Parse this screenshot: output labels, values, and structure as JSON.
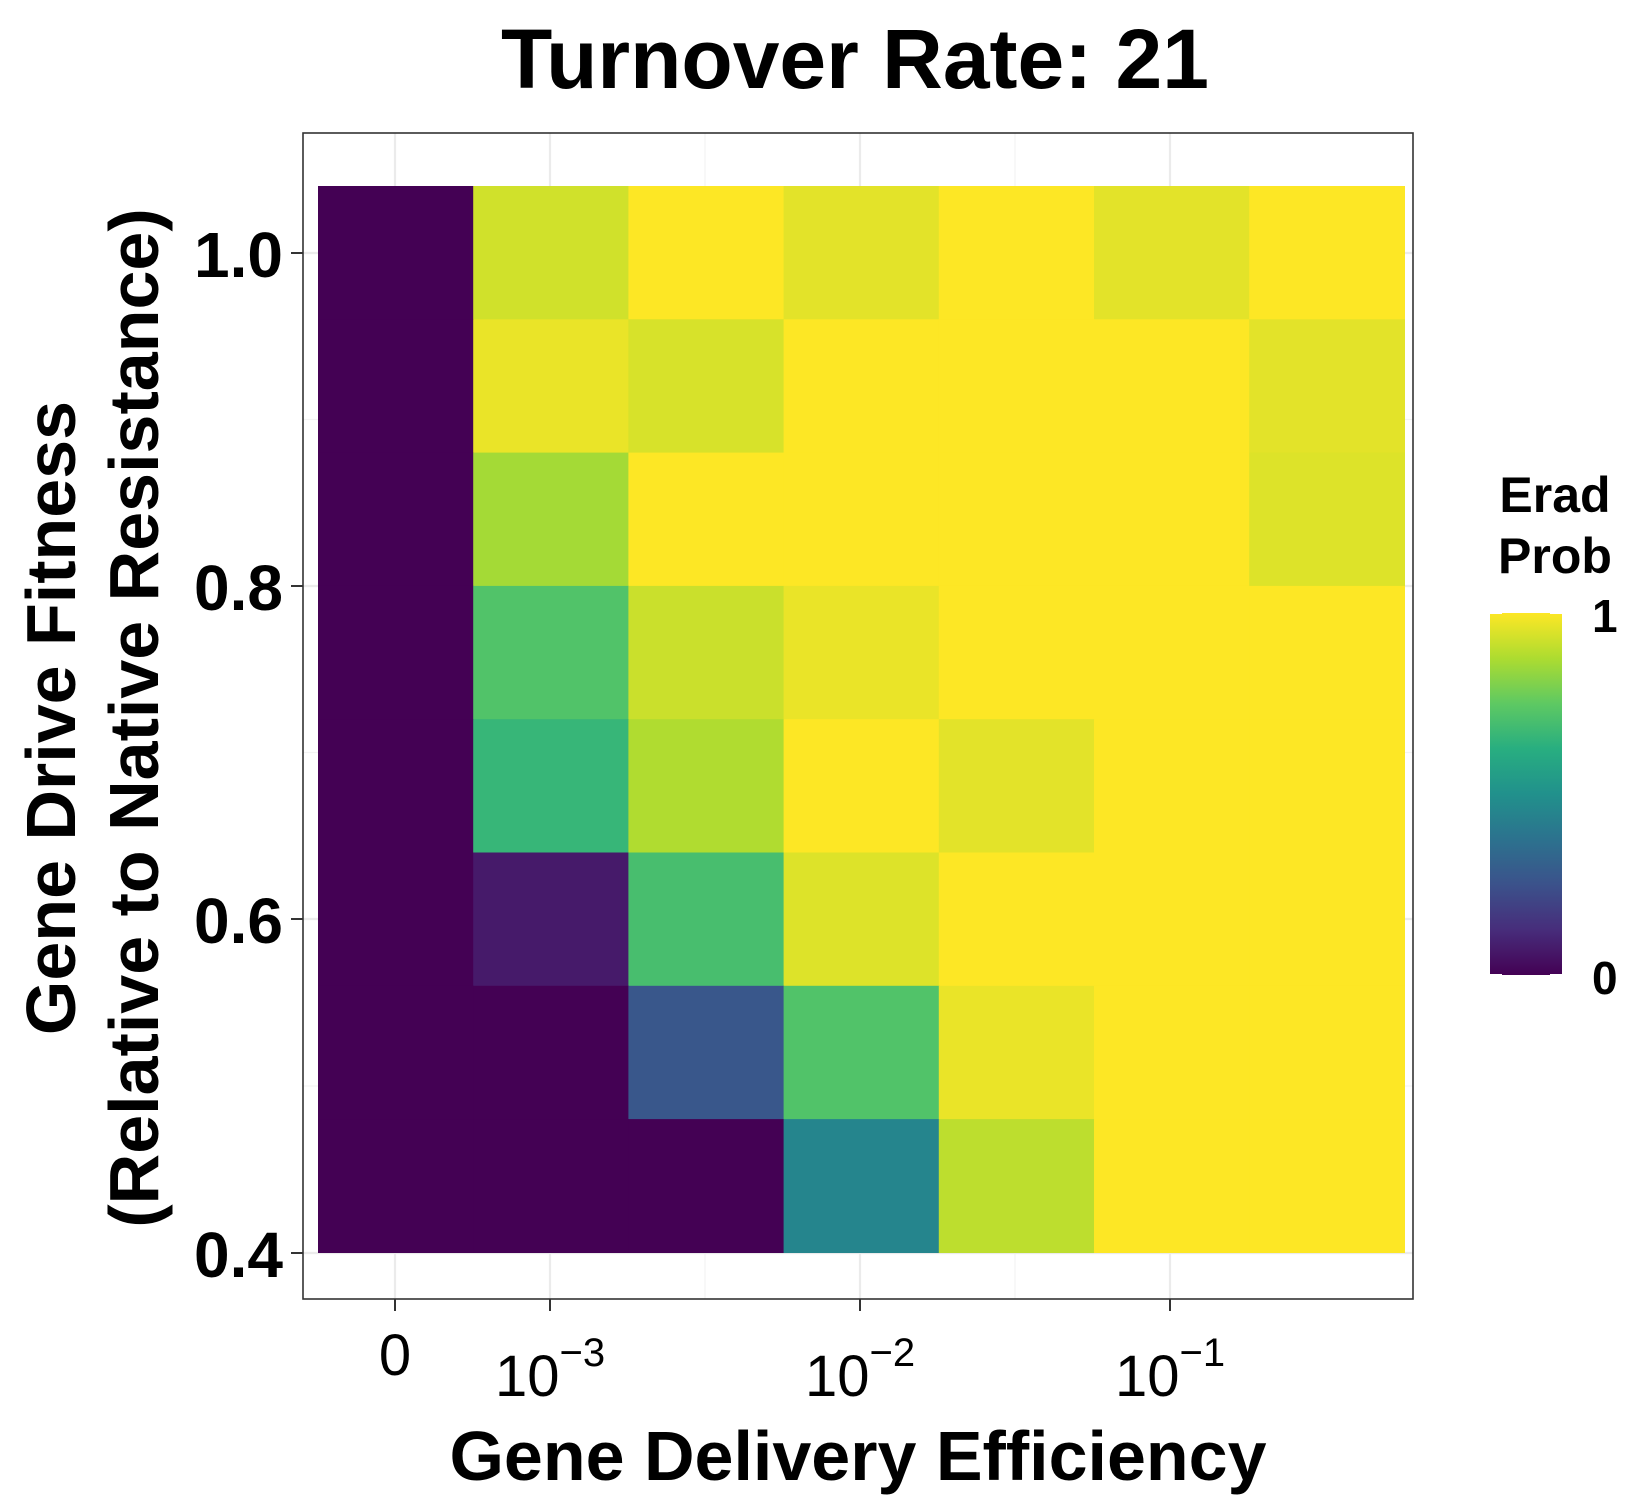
{
  "chart_data": {
    "type": "heatmap",
    "title": "Turnover Rate: 21",
    "xlabel": "Gene Delivery Efficiency",
    "ylabel_line1": "Gene Drive Fitness",
    "ylabel_line2": "(Relative to Native Resistance)",
    "x_ticks": [
      {
        "base": "0",
        "exp": ""
      },
      {
        "base": "10",
        "exp": "−3"
      },
      {
        "base": "10",
        "exp": "−2"
      },
      {
        "base": "10",
        "exp": "−1"
      }
    ],
    "y_ticks": [
      "1.0",
      "0.8",
      "0.6",
      "0.4"
    ],
    "y_tick_values": [
      1.0,
      0.8,
      0.6,
      0.4
    ],
    "y_levels": [
      1.0,
      0.92,
      0.84,
      0.76,
      0.68,
      0.6,
      0.52,
      0.44
    ],
    "legend": {
      "title_line1": "Erad",
      "title_line2": "Prob",
      "max_label": "1",
      "min_label": "0",
      "placement": "right"
    },
    "colorscale": "viridis",
    "grid": true,
    "values": [
      [
        0.0,
        0.93,
        1.0,
        0.96,
        1.0,
        0.96,
        1.0
      ],
      [
        0.0,
        0.97,
        0.94,
        1.0,
        1.0,
        1.0,
        0.96
      ],
      [
        0.0,
        0.86,
        1.0,
        1.0,
        1.0,
        1.0,
        0.95
      ],
      [
        0.0,
        0.72,
        0.92,
        0.97,
        1.0,
        1.0,
        1.0
      ],
      [
        0.0,
        0.66,
        0.88,
        1.0,
        0.96,
        1.0,
        1.0
      ],
      [
        0.0,
        0.07,
        0.7,
        0.95,
        1.0,
        1.0,
        1.0
      ],
      [
        0.0,
        0.0,
        0.27,
        0.72,
        0.97,
        1.0,
        1.0
      ],
      [
        0.0,
        0.0,
        0.0,
        0.45,
        0.9,
        1.0,
        1.0
      ]
    ]
  }
}
